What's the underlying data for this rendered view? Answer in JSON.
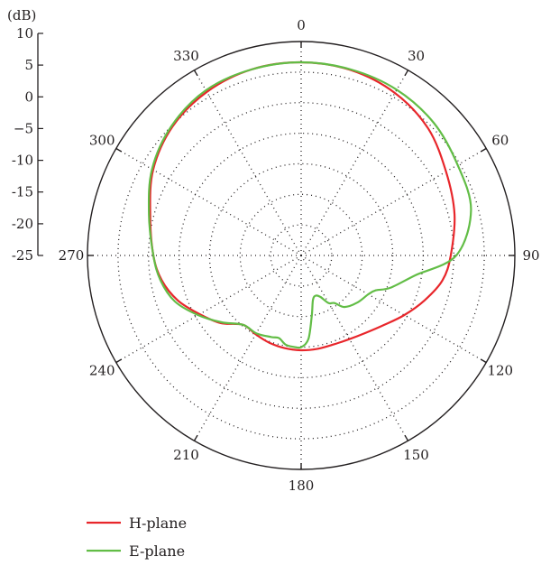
{
  "chart_data": {
    "type": "polar-line",
    "radial_unit": "(dB)",
    "radial_range": [
      -25,
      10
    ],
    "radial_ticks": [
      "10",
      "5",
      "0",
      "−5",
      "-10",
      "-15",
      "-20",
      "-25"
    ],
    "radial_tick_values": [
      10,
      5,
      0,
      -5,
      -10,
      -15,
      -20,
      -25
    ],
    "angle_ticks": [
      "0",
      "30",
      "60",
      "90",
      "120",
      "150",
      "180",
      "210",
      "240",
      "270",
      "300",
      "330"
    ],
    "angle_tick_values": [
      0,
      30,
      60,
      90,
      120,
      150,
      180,
      210,
      240,
      270,
      300,
      330
    ],
    "grid": true,
    "legend_position": "bottom-left",
    "series": [
      {
        "name": "H-plane",
        "color": "#e8262b",
        "theta": [
          0,
          15,
          30,
          45,
          60,
          75,
          90,
          100,
          110,
          120,
          130,
          140,
          150,
          160,
          170,
          180,
          190,
          200,
          210,
          220,
          230,
          240,
          250,
          260,
          270,
          285,
          300,
          315,
          330,
          345,
          360
        ],
        "r": [
          6.6,
          6.4,
          5.7,
          4.4,
          2.4,
          1.0,
          -0.5,
          -1.5,
          -3.5,
          -5.5,
          -7.3,
          -8.5,
          -9.2,
          -9.5,
          -9.5,
          -9.5,
          -9.6,
          -9.8,
          -10.1,
          -10.2,
          -7.8,
          -5.8,
          -3.5,
          -1.8,
          -0.8,
          0.6,
          3.0,
          4.8,
          5.9,
          6.5,
          6.6
        ]
      },
      {
        "name": "E-plane",
        "color": "#62bd46",
        "theta": [
          0,
          15,
          30,
          45,
          60,
          75,
          90,
          100,
          110,
          115,
          120,
          130,
          140,
          145,
          150,
          155,
          160,
          165,
          170,
          175,
          180,
          185,
          190,
          195,
          200,
          210,
          220,
          230,
          240,
          250,
          260,
          270,
          285,
          300,
          315,
          330,
          345,
          360
        ],
        "r": [
          6.6,
          6.5,
          6.3,
          5.7,
          4.6,
          3.8,
          0.4,
          -6.1,
          -9.5,
          -11.5,
          -12.3,
          -13.0,
          -14.0,
          -15.5,
          -16.0,
          -17.5,
          -18.0,
          -17.5,
          -15.0,
          -11.3,
          -10.0,
          -10.0,
          -10.2,
          -11.0,
          -10.8,
          -10.3,
          -10.2,
          -8.0,
          -5.5,
          -3.0,
          -1.6,
          -0.8,
          0.8,
          3.2,
          5.0,
          6.2,
          6.5,
          6.6
        ]
      }
    ]
  }
}
